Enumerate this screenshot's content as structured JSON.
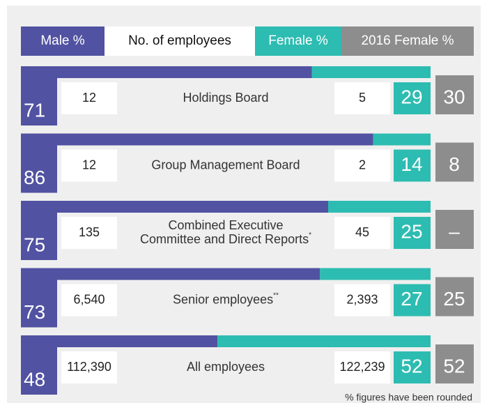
{
  "chart_data": {
    "type": "bar",
    "column_header": "No. of employees",
    "categories": [
      "Holdings Board",
      "Group Management Board",
      "Combined Executive Committee and Direct Reports",
      "Senior employees",
      "All employees"
    ],
    "category_notes": [
      null,
      null,
      "*",
      "**",
      null
    ],
    "male_counts": [
      "12",
      "12",
      "135",
      "6,540",
      "112,390"
    ],
    "female_counts": [
      "5",
      "2",
      "45",
      "2,393",
      "122,239"
    ],
    "xlim": [
      0,
      100
    ],
    "series": [
      {
        "name": "Male %",
        "color": "#5152a1",
        "values": [
          71,
          86,
          75,
          73,
          48
        ]
      },
      {
        "name": "Female %",
        "color": "#2dbcb1",
        "values": [
          29,
          14,
          25,
          27,
          52
        ]
      },
      {
        "name": "2016 Female %",
        "color": "#8d8d8d",
        "values": [
          30,
          8,
          null,
          25,
          52
        ],
        "value_labels": [
          "30",
          "8",
          "–",
          "25",
          "52"
        ]
      }
    ],
    "footnote": "% figures have been rounded"
  }
}
